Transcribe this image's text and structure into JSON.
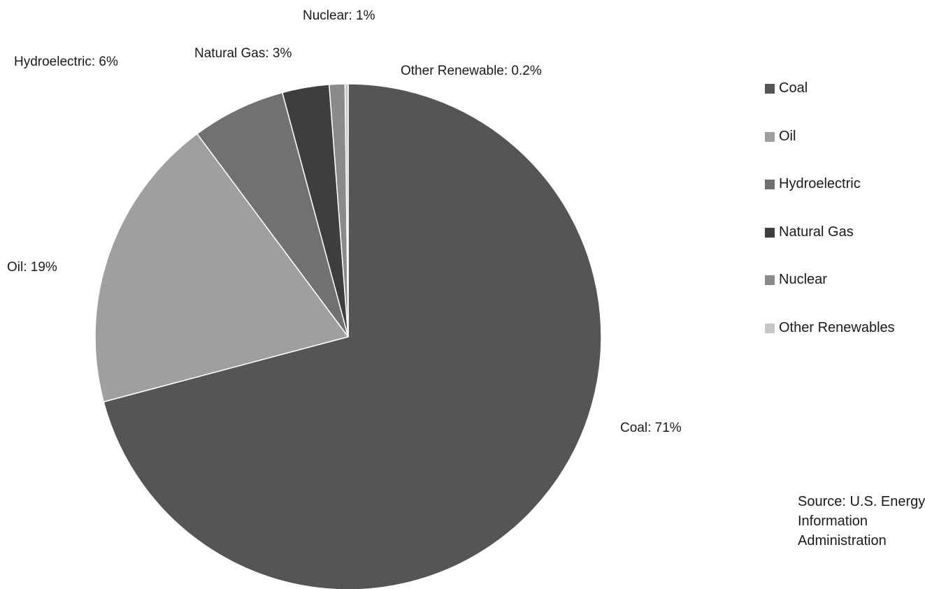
{
  "chart_data": {
    "type": "pie",
    "title": "",
    "slices": [
      {
        "name": "Coal",
        "value": 71,
        "label": "Coal: 71%",
        "color": "#555555"
      },
      {
        "name": "Oil",
        "value": 19,
        "label": "Oil: 19%",
        "color": "#9f9f9f"
      },
      {
        "name": "Hydroelectric",
        "value": 6,
        "label": "Hydroelectric: 6%",
        "color": "#717171"
      },
      {
        "name": "Natural Gas",
        "value": 3,
        "label": "Natural Gas: 3%",
        "color": "#3e3e3e"
      },
      {
        "name": "Nuclear",
        "value": 1,
        "label": "Nuclear: 1%",
        "color": "#8a8a8a"
      },
      {
        "name": "Other Renewables",
        "value": 0.2,
        "label": "Other Renewable: 0.2%",
        "color": "#c6c6c6"
      }
    ],
    "legend": {
      "placement": "right",
      "entries": [
        "Coal",
        "Oil",
        "Hydroelectric",
        "Natural Gas",
        "Nuclear",
        "Other Renewables"
      ]
    },
    "start_angle": "12 o'clock",
    "direction": "counterclockwise"
  },
  "source_note": "Source: U.S. Energy Information Administration"
}
